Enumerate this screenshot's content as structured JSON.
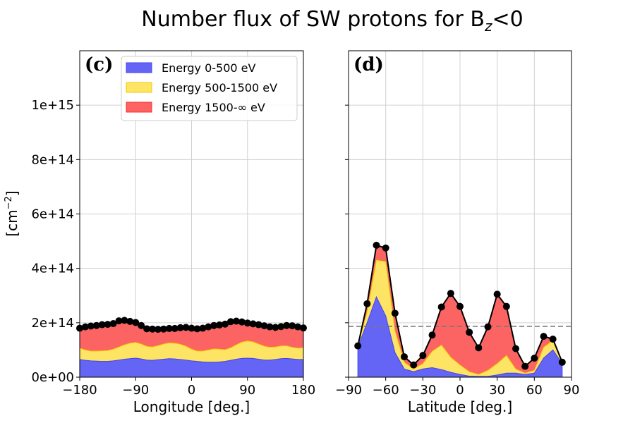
{
  "title": {
    "main": "Number flux of SW protons for B",
    "sub": "z",
    "tail": "<0"
  },
  "ylabel": {
    "main": "[cm",
    "sup": "−2",
    "tail": "]"
  },
  "colors": {
    "low": "#6565f5",
    "low_edge": "#4343f0",
    "mid": "#fde465",
    "mid_edge": "#f5c800",
    "high": "#fc6464",
    "high_edge": "#ff2a2a",
    "dashed": "#777777"
  },
  "legend": {
    "entries": [
      "Energy 0-500 eV",
      "Energy 500-1500 eV",
      "Energy 1500-∞ eV"
    ],
    "placement": "upper center of left panel"
  },
  "chart_data": [
    {
      "type": "area",
      "stacked": true,
      "panel_label": "(c)",
      "xlabel": "Longitude [deg.]",
      "ylabel": "[cm⁻²]",
      "xlim": [
        -180,
        180
      ],
      "ylim": [
        0,
        1200000000000000.0
      ],
      "xticks": [
        -180,
        -90,
        0,
        90,
        180
      ],
      "xtick_labels": [
        "−180",
        "−90",
        "0",
        "90",
        "180"
      ],
      "yticks": [
        0,
        200000000000000.0,
        400000000000000.0,
        600000000000000.0,
        800000000000000.0,
        1000000000000000.0
      ],
      "ytick_labels": [
        "0e+00",
        "2e+14",
        "4e+14",
        "6e+14",
        "8e+14",
        "1e+15"
      ],
      "grid": true,
      "x": [
        -180,
        -171,
        -162,
        -153,
        -144,
        -135,
        -126,
        -117,
        -108,
        -99,
        -90,
        -81,
        -72,
        -63,
        -54,
        -45,
        -36,
        -27,
        -18,
        -9,
        0,
        9,
        18,
        27,
        36,
        45,
        54,
        63,
        72,
        81,
        90,
        99,
        108,
        117,
        126,
        135,
        144,
        153,
        162,
        171,
        180
      ],
      "series": [
        {
          "name": "Energy 0-500 eV",
          "values": [
            65000000000000.0,
            62000000000000.0,
            60000000000000.0,
            59000000000000.0,
            58000000000000.0,
            58000000000000.0,
            60000000000000.0,
            63000000000000.0,
            66000000000000.0,
            68000000000000.0,
            70000000000000.0,
            67000000000000.0,
            63000000000000.0,
            62000000000000.0,
            64000000000000.0,
            66000000000000.0,
            68000000000000.0,
            67000000000000.0,
            65000000000000.0,
            63000000000000.0,
            60000000000000.0,
            58000000000000.0,
            56000000000000.0,
            55000000000000.0,
            55000000000000.0,
            56000000000000.0,
            58000000000000.0,
            62000000000000.0,
            66000000000000.0,
            69000000000000.0,
            70000000000000.0,
            69000000000000.0,
            66000000000000.0,
            63000000000000.0,
            63000000000000.0,
            65000000000000.0,
            68000000000000.0,
            69000000000000.0,
            67000000000000.0,
            65000000000000.0,
            65000000000000.0
          ]
        },
        {
          "name": "Energy 500-1500 eV",
          "values": [
            42000000000000.0,
            38000000000000.0,
            36000000000000.0,
            37000000000000.0,
            39000000000000.0,
            40000000000000.0,
            43000000000000.0,
            48000000000000.0,
            53000000000000.0,
            57000000000000.0,
            58000000000000.0,
            55000000000000.0,
            50000000000000.0,
            49000000000000.0,
            52000000000000.0,
            56000000000000.0,
            58000000000000.0,
            58000000000000.0,
            56000000000000.0,
            51000000000000.0,
            43000000000000.0,
            38000000000000.0,
            40000000000000.0,
            45000000000000.0,
            49000000000000.0,
            47000000000000.0,
            43000000000000.0,
            46000000000000.0,
            53000000000000.0,
            60000000000000.0,
            63000000000000.0,
            61000000000000.0,
            56000000000000.0,
            51000000000000.0,
            47000000000000.0,
            46000000000000.0,
            47000000000000.0,
            46000000000000.0,
            43000000000000.0,
            42000000000000.0,
            43000000000000.0
          ]
        },
        {
          "name": "Energy 1500-∞ eV",
          "values": [
            73000000000000.0,
            85000000000000.0,
            92000000000000.0,
            94000000000000.0,
            96000000000000.0,
            96000000000000.0,
            94000000000000.0,
            96000000000000.0,
            90000000000000.0,
            80000000000000.0,
            73000000000000.0,
            68000000000000.0,
            65000000000000.0,
            66000000000000.0,
            60000000000000.0,
            55000000000000.0,
            53000000000000.0,
            54000000000000.0,
            61000000000000.0,
            69000000000000.0,
            77000000000000.0,
            82000000000000.0,
            84000000000000.0,
            85000000000000.0,
            86000000000000.0,
            89000000000000.0,
            94000000000000.0,
            96000000000000.0,
            87000000000000.0,
            74000000000000.0,
            66000000000000.0,
            66000000000000.0,
            71000000000000.0,
            75000000000000.0,
            75000000000000.0,
            72000000000000.0,
            71000000000000.0,
            75000000000000.0,
            79000000000000.0,
            78000000000000.0,
            73000000000000.0
          ]
        }
      ],
      "total_markers": true
    },
    {
      "type": "area",
      "stacked": true,
      "panel_label": "(d)",
      "xlabel": "Latitude [deg.]",
      "ylim": [
        0,
        1200000000000000.0
      ],
      "xlim": [
        -90,
        90
      ],
      "xticks": [
        -90,
        -60,
        -30,
        0,
        30,
        60,
        90
      ],
      "xtick_labels": [
        "−90",
        "−60",
        "−30",
        "0",
        "30",
        "60",
        "90"
      ],
      "yticks": [
        0,
        200000000000000.0,
        400000000000000.0,
        600000000000000.0,
        800000000000000.0,
        1000000000000000.0
      ],
      "grid": true,
      "x": [
        -82.5,
        -75,
        -67.5,
        -60,
        -52.5,
        -45,
        -37.5,
        -30,
        -22.5,
        -15,
        -7.5,
        0,
        7.5,
        15,
        22.5,
        30,
        37.5,
        45,
        52.5,
        60,
        67.5,
        75,
        82.5
      ],
      "series": [
        {
          "name": "Energy 0-500 eV",
          "values": [
            110000000000000.0,
            200000000000000.0,
            295000000000000.0,
            225000000000000.0,
            90000000000000.0,
            30000000000000.0,
            20000000000000.0,
            30000000000000.0,
            35000000000000.0,
            28000000000000.0,
            18000000000000.0,
            10000000000000.0,
            4000000000000.0,
            3000000000000.0,
            3000000000000.0,
            8000000000000.0,
            15000000000000.0,
            15000000000000.0,
            10000000000000.0,
            15000000000000.0,
            70000000000000.0,
            100000000000000.0,
            50000000000000.0
          ]
        },
        {
          "name": "Energy 500-1500 eV",
          "values": [
            5000000000000.0,
            40000000000000.0,
            135000000000000.0,
            200000000000000.0,
            80000000000000.0,
            25000000000000.0,
            10000000000000.0,
            20000000000000.0,
            60000000000000.0,
            90000000000000.0,
            55000000000000.0,
            35000000000000.0,
            16000000000000.0,
            7000000000000.0,
            22000000000000.0,
            42000000000000.0,
            65000000000000.0,
            15000000000000.0,
            5000000000000.0,
            10000000000000.0,
            40000000000000.0,
            35000000000000.0,
            5000000000000.0
          ]
        },
        {
          "name": "Energy 1500-∞ eV",
          "values": [
            0,
            30000000000000.0,
            55000000000000.0,
            50000000000000.0,
            65000000000000.0,
            20000000000000.0,
            15000000000000.0,
            30000000000000.0,
            60000000000000.0,
            140000000000000.0,
            235000000000000.0,
            215000000000000.0,
            145000000000000.0,
            98000000000000.0,
            160000000000000.0,
            255000000000000.0,
            180000000000000.0,
            75000000000000.0,
            25000000000000.0,
            45000000000000.0,
            40000000000000.0,
            5000000000000.0,
            0
          ]
        }
      ],
      "total_markers": true,
      "reference_line": 187000000000000.0
    }
  ]
}
